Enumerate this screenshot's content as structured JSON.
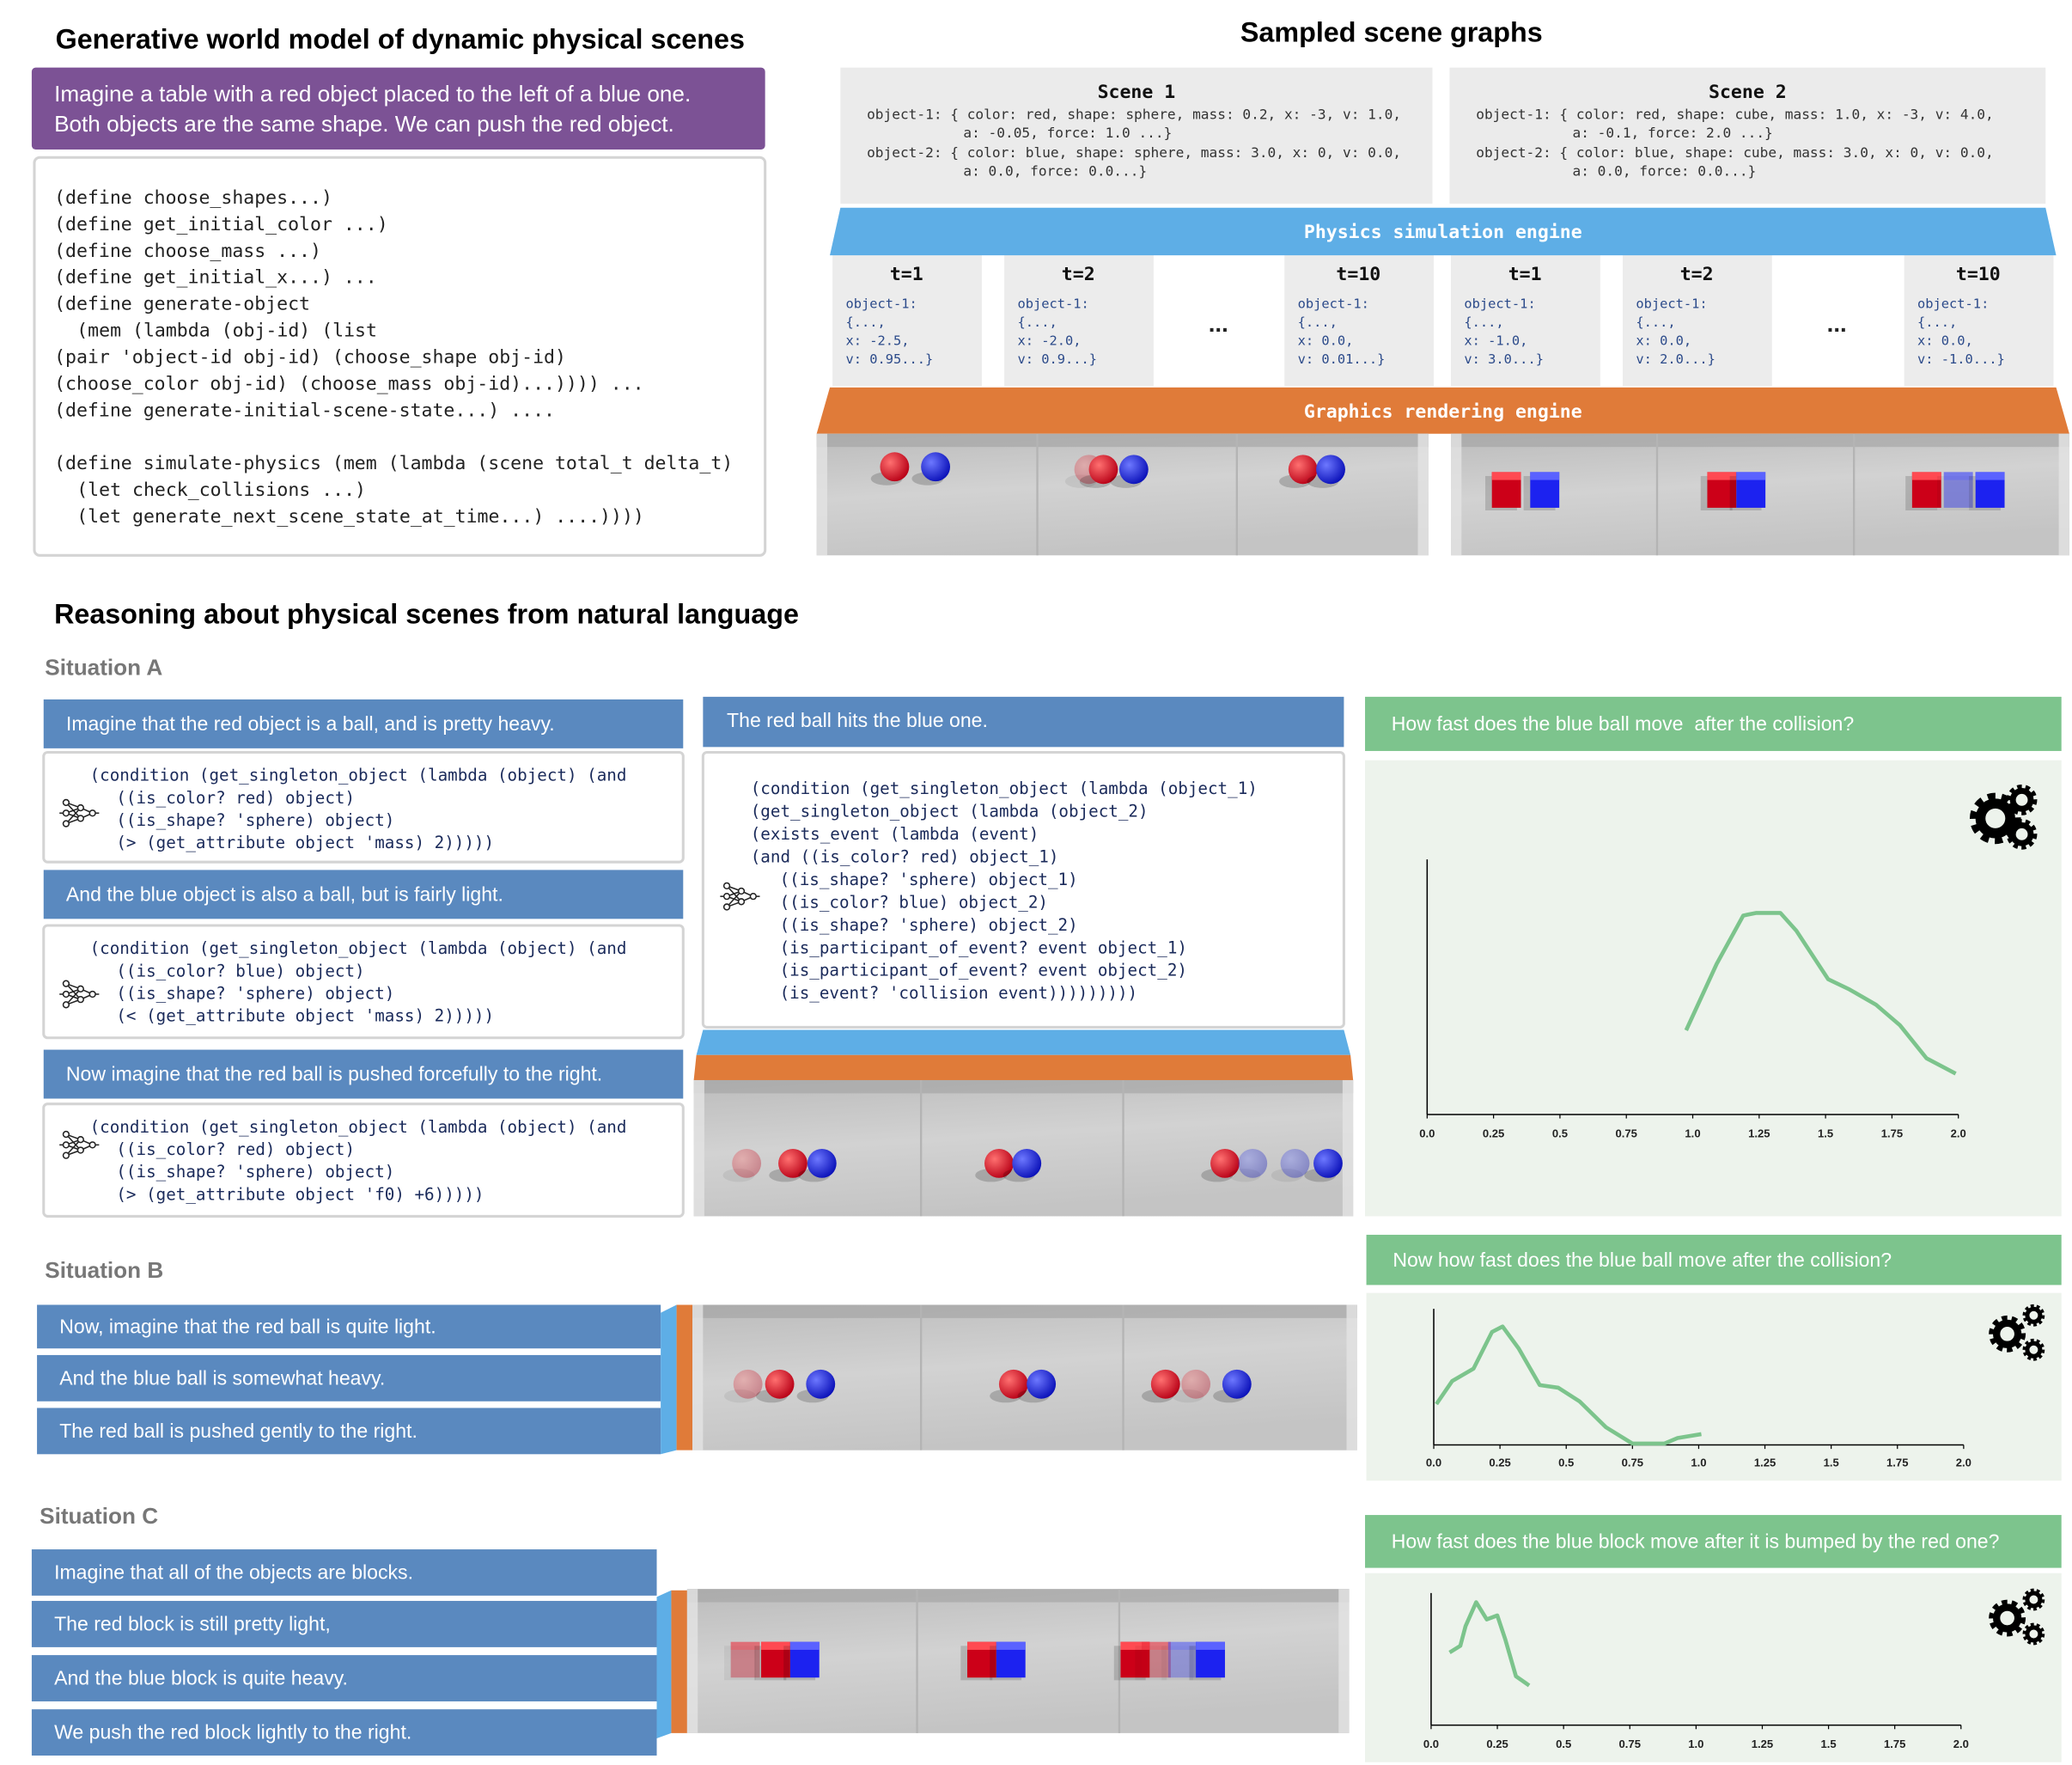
{
  "top_left": {
    "title": "Generative world model of dynamic physical scenes",
    "prompt": [
      "Imagine a table with a red object placed to the left of a blue one.",
      "Both objects are the same shape. We can push the red object."
    ],
    "code": [
      [
        "(define choose_shapes...)",
        "(define get_initial_color ...)",
        "(define choose_mass ...)",
        "(define get_initial_x...) ...",
        "(define generate-object",
        "(mem (lambda (obj-id) (list",
        "(pair 'object-id obj-id) (choose_shape obj-id)",
        "(choose_color obj-id) (choose_mass obj-id)...)))) ...",
        "(define generate-initial-scene-state...) ...."
      ],
      [
        "(define simulate-physics (mem (lambda (scene total_t delta_t)",
        "(let check_collisions ...)",
        "(let generate_next_scene_state_at_time...) ....))))"
      ]
    ]
  },
  "top_right": {
    "title": "Sampled scene graphs",
    "physics_engine": "Physics simulation engine",
    "rendering_engine": "Graphics rendering engine",
    "scenes": [
      {
        "label": "Scene 1",
        "graph": [
          [
            "object-1: { color: red, shape: sphere, mass: 0.2, x: -3, v: 1.0,",
            "a: -0.05, force: 1.0 ...}"
          ],
          [
            "object-2: { color: blue, shape: sphere, mass: 3.0, x: 0, v: 0.0,",
            "a: 0.0, force: 0.0...}"
          ]
        ],
        "timesteps": [
          {
            "label": "t=1",
            "lines": [
              "object-1:",
              "{...,",
              "x: -2.5,",
              "v: 0.95...}"
            ]
          },
          {
            "label": "t=2",
            "lines": [
              "object-1:",
              "{...,",
              "x: -2.0,",
              "v: 0.9...}"
            ]
          },
          {
            "label": "t=10",
            "lines": [
              "object-1:",
              "{...,",
              "x: 0.0,",
              "v: 0.01...}"
            ]
          }
        ],
        "ellipsis": "..."
      },
      {
        "label": "Scene 2",
        "graph": [
          [
            "object-1: { color: red, shape: cube, mass: 1.0, x: -3, v: 4.0,",
            "a: -0.1, force: 2.0 ...}"
          ],
          [
            "object-2: { color: blue, shape: cube, mass: 3.0, x: 0, v: 0.0,",
            "a: 0.0, force: 0.0...}"
          ]
        ],
        "timesteps": [
          {
            "label": "t=1",
            "lines": [
              "object-1:",
              "{...,",
              "x: -1.0,",
              "v: 3.0...}"
            ]
          },
          {
            "label": "t=2",
            "lines": [
              "object-1:",
              "{...,",
              "x: 0.0,",
              "v: 2.0...}"
            ]
          },
          {
            "label": "t=10",
            "lines": [
              "object-1:",
              "{...,",
              "x: 0.0,",
              "v: -1.0...}"
            ]
          }
        ],
        "ellipsis": "..."
      }
    ]
  },
  "bottom": {
    "title": "Reasoning about physical scenes from natural language",
    "situations": [
      {
        "label": "Situation A",
        "statements": [
          {
            "text": "Imagine that the red object is a ball, and is pretty heavy.",
            "code": [
              "(condition (get_singleton_object (lambda (object) (and",
              "((is_color? red) object)",
              "((is_shape? 'sphere) object)",
              "(> (get_attribute object 'mass) 2)))))"
            ]
          },
          {
            "text": "And the blue object is also a ball, but is fairly light.",
            "code": [
              "(condition (get_singleton_object (lambda (object) (and",
              "((is_color? blue) object)",
              "((is_shape? 'sphere) object)",
              "(< (get_attribute object 'mass) 2)))))"
            ]
          },
          {
            "text": "Now imagine that the red ball is pushed forcefully to the right.",
            "code": [
              "(condition (get_singleton_object (lambda (object) (and",
              "((is_color? red) object)",
              "((is_shape? 'sphere) object)",
              "(> (get_attribute object 'f0) +6)))))"
            ]
          }
        ],
        "event": {
          "text": "The red ball hits the blue one.",
          "code": [
            "(condition (get_singleton_object (lambda (object_1)",
            "(get_singleton_object (lambda (object_2)",
            "(exists_event (lambda (event)",
            "(and ((is_color? red) object_1)",
            "((is_shape? 'sphere) object_1)",
            "((is_color? blue) object_2)",
            "((is_shape? 'sphere) object_2)",
            "(is_participant_of_event? event object_1)",
            "(is_participant_of_event? event object_2)",
            "(is_event? 'collision event)))))))))"
          ]
        },
        "question": "How fast does the blue ball move  after the collision?",
        "plot": {
          "xlim": [
            0,
            2
          ],
          "ylim": [
            0,
            1
          ],
          "color": "#7cc48c",
          "xticks": [
            {
              "value": 0,
              "label": "0.0"
            },
            0.25,
            0.5,
            0.75,
            {
              "value": 1,
              "label": "1.0"
            },
            1.25,
            1.5,
            1.75,
            {
              "value": 2,
              "label": "2.0"
            }
          ],
          "x": [
            0.975,
            1.09,
            1.19,
            1.24,
            1.33,
            1.39,
            1.51,
            1.59,
            1.69,
            1.78,
            1.88,
            1.99
          ],
          "y": [
            0.33,
            0.59,
            0.78,
            0.79,
            0.79,
            0.72,
            0.53,
            0.49,
            0.43,
            0.35,
            0.22,
            0.16
          ]
        }
      },
      {
        "label": "Situation B",
        "statements": [
          {
            "text": "Now, imagine that the red ball is quite light."
          },
          {
            "text": "And the blue ball is somewhat heavy."
          },
          {
            "text": "The red ball is pushed gently to the right."
          }
        ],
        "question": "Now how fast does the blue ball move after the collision?",
        "plot": {
          "xlim": [
            0,
            2
          ],
          "ylim": [
            0,
            1
          ],
          "color": "#7cc48c",
          "xticks": [
            {
              "value": 0,
              "label": "0.0"
            },
            0.25,
            0.5,
            0.75,
            {
              "value": 1,
              "label": "1.0"
            },
            1.25,
            1.5,
            1.75,
            {
              "value": 2,
              "label": "2.0"
            }
          ],
          "x": [
            0.01,
            0.07,
            0.15,
            0.22,
            0.26,
            0.32,
            0.4,
            0.47,
            0.55,
            0.65,
            0.75,
            0.87,
            0.92,
            1.01
          ],
          "y": [
            0.3,
            0.47,
            0.56,
            0.83,
            0.87,
            0.71,
            0.44,
            0.42,
            0.32,
            0.13,
            0.01,
            0.01,
            0.05,
            0.08
          ]
        }
      },
      {
        "label": "Situation C",
        "statements": [
          {
            "text": "Imagine that all of the objects are blocks."
          },
          {
            "text": "The red block is still pretty light,"
          },
          {
            "text": "And the blue block is quite heavy."
          },
          {
            "text": "We push the red block lightly to the right."
          }
        ],
        "question": "How fast does the blue block move after it is bumped by the red one?",
        "plot": {
          "xlim": [
            0,
            2
          ],
          "ylim": [
            0,
            1
          ],
          "color": "#7cc48c",
          "xticks": [
            {
              "value": 0,
              "label": "0.0"
            },
            0.25,
            0.5,
            0.75,
            {
              "value": 1,
              "label": "1.0"
            },
            1.25,
            1.5,
            1.75,
            {
              "value": 2,
              "label": "2.0"
            }
          ],
          "x": [
            0.07,
            0.11,
            0.13,
            0.17,
            0.21,
            0.25,
            0.28,
            0.32,
            0.37
          ],
          "y": [
            0.55,
            0.6,
            0.75,
            0.93,
            0.8,
            0.83,
            0.65,
            0.37,
            0.3
          ]
        }
      }
    ]
  }
}
